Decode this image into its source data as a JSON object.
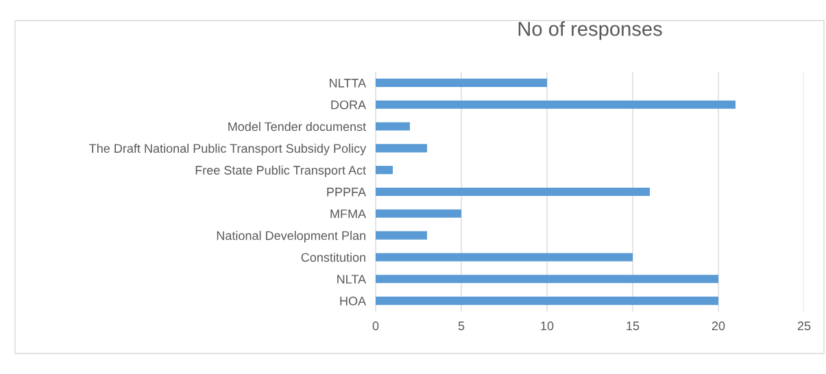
{
  "chart_data": {
    "type": "bar",
    "orientation": "horizontal",
    "title": "No of responses",
    "categories": [
      "NLTTA",
      "DORA",
      "Model Tender documenst",
      "The Draft National Public Transport Subsidy Policy",
      "Free State Public Transport Act",
      "PPPFA",
      "MFMA",
      "National Development Plan",
      "Constitution",
      "NLTA",
      "HOA"
    ],
    "values": [
      10,
      21,
      2,
      3,
      1,
      16,
      5,
      3,
      15,
      20,
      20
    ],
    "color": "#5b9bd5",
    "xlim": [
      0,
      25
    ],
    "xticks": [
      0,
      5,
      10,
      15,
      20,
      25
    ],
    "grid": "x"
  }
}
